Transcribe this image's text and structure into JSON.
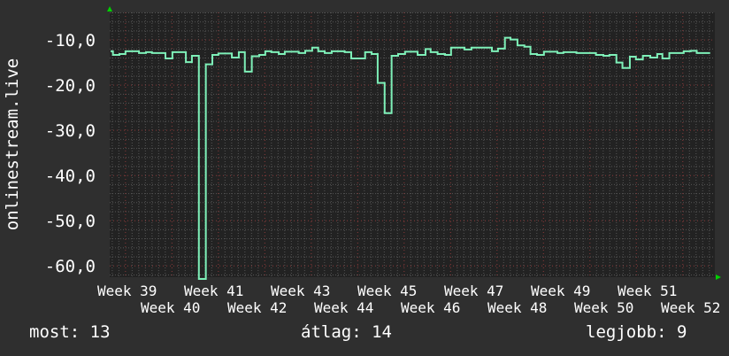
{
  "chart_data": {
    "type": "line",
    "step": true,
    "ylabel": "onlinestream.live",
    "xlabel": "",
    "title": "",
    "yticks": [
      -10,
      -20,
      -30,
      -40,
      -50,
      -60
    ],
    "ytick_labels": [
      "-10,0",
      "-20,0",
      "-30,0",
      "-40,0",
      "-50,0",
      "-60,0"
    ],
    "xtick_labels": [
      "Week 39",
      "Week 40",
      "Week 41",
      "Week 42",
      "Week 43",
      "Week 44",
      "Week 45",
      "Week 46",
      "Week 47",
      "Week 48",
      "Week 49",
      "Week 50",
      "Week 51",
      "Week 52"
    ],
    "xlim": [
      39.66,
      52.69
    ],
    "ylim": [
      -62.5,
      -3.9
    ],
    "grid": true,
    "colors": {
      "line": "#7ef0b8",
      "background": "#2f2f2f",
      "plot_background": "#222222",
      "major_grid": "#8a3a3a",
      "minor_grid": "#555555",
      "axis_arrow": "#00d000"
    },
    "series": [
      {
        "points": [
          [
            39.68,
            -12.5
          ],
          [
            39.73,
            -13.3
          ],
          [
            39.87,
            -13.1
          ],
          [
            40.0,
            -12.5
          ],
          [
            40.29,
            -12.9
          ],
          [
            40.44,
            -12.7
          ],
          [
            40.57,
            -12.9
          ],
          [
            40.86,
            -14.1
          ],
          [
            41.01,
            -12.7
          ],
          [
            41.3,
            -14.9
          ],
          [
            41.43,
            -13.5
          ],
          [
            41.58,
            -70
          ],
          [
            41.73,
            -15.4
          ],
          [
            41.87,
            -13.3
          ],
          [
            42.0,
            -13.0
          ],
          [
            42.29,
            -13.9
          ],
          [
            42.44,
            -12.7
          ],
          [
            42.57,
            -17.0
          ],
          [
            42.72,
            -13.6
          ],
          [
            42.88,
            -13.3
          ],
          [
            43.01,
            -12.5
          ],
          [
            43.14,
            -12.7
          ],
          [
            43.3,
            -13.1
          ],
          [
            43.43,
            -12.6
          ],
          [
            43.73,
            -12.9
          ],
          [
            43.87,
            -12.4
          ],
          [
            44.02,
            -11.7
          ],
          [
            44.15,
            -12.5
          ],
          [
            44.29,
            -12.9
          ],
          [
            44.44,
            -12.5
          ],
          [
            44.72,
            -12.7
          ],
          [
            44.86,
            -14.1
          ],
          [
            45.16,
            -12.7
          ],
          [
            45.3,
            -13.1
          ],
          [
            45.43,
            -19.5
          ],
          [
            45.58,
            -26.2
          ],
          [
            45.73,
            -13.5
          ],
          [
            45.87,
            -13.1
          ],
          [
            46.02,
            -12.6
          ],
          [
            46.15,
            -12.6
          ],
          [
            46.29,
            -13.3
          ],
          [
            46.46,
            -12.0
          ],
          [
            46.57,
            -12.7
          ],
          [
            46.72,
            -13.1
          ],
          [
            46.88,
            -13.3
          ],
          [
            47.01,
            -11.7
          ],
          [
            47.3,
            -12.1
          ],
          [
            47.45,
            -11.7
          ],
          [
            47.89,
            -12.5
          ],
          [
            48.02,
            -11.9
          ],
          [
            48.17,
            -9.5
          ],
          [
            48.29,
            -9.9
          ],
          [
            48.44,
            -11.2
          ],
          [
            48.59,
            -11.5
          ],
          [
            48.72,
            -13.1
          ],
          [
            48.86,
            -13.3
          ],
          [
            49.01,
            -12.6
          ],
          [
            49.3,
            -12.9
          ],
          [
            49.43,
            -12.7
          ],
          [
            49.71,
            -12.9
          ],
          [
            50.13,
            -13.3
          ],
          [
            50.29,
            -13.5
          ],
          [
            50.42,
            -13.3
          ],
          [
            50.57,
            -15.0
          ],
          [
            50.7,
            -16.2
          ],
          [
            50.86,
            -13.7
          ],
          [
            50.99,
            -14.3
          ],
          [
            51.14,
            -13.5
          ],
          [
            51.3,
            -13.9
          ],
          [
            51.45,
            -13.1
          ],
          [
            51.56,
            -14.1
          ],
          [
            51.71,
            -12.9
          ],
          [
            52.02,
            -12.5
          ],
          [
            52.17,
            -12.4
          ],
          [
            52.3,
            -12.9
          ],
          [
            52.57,
            -12.9
          ]
        ]
      }
    ]
  },
  "legend": {
    "current": "most: 13",
    "average": "átlag: 14",
    "best": "legjobb: 9"
  }
}
